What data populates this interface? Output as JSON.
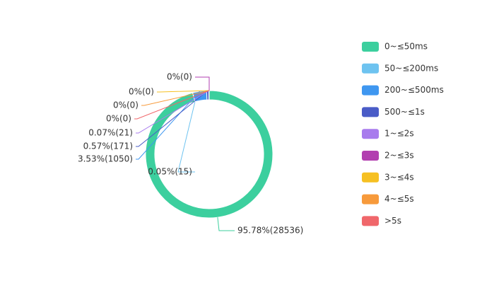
{
  "chart_data": {
    "type": "pie",
    "donut": true,
    "categories": [
      "0~≤50ms",
      "50~≤200ms",
      "200~≤500ms",
      "500~≤1s",
      "1~≤2s",
      "2~≤3s",
      "3~≤4s",
      "4~≤5s",
      ">5s"
    ],
    "series": [
      {
        "values": [
          28536,
          15,
          1050,
          171,
          21,
          0,
          0,
          0,
          0
        ],
        "value_labels": [
          "95.78%(28536)",
          "0.05%(15)",
          "3.53%(1050)",
          "0.57%(171)",
          "0.07%(21)",
          "0%(0)",
          "0%(0)",
          "0%(0)",
          "0%(0)"
        ]
      }
    ],
    "colors": [
      "#3ccf9e",
      "#6ec3f0",
      "#3f97f0",
      "#4a5cc7",
      "#a87bed",
      "#b23fb0",
      "#f6c022",
      "#f79a3b",
      "#f0676b"
    ],
    "legend": "right"
  }
}
